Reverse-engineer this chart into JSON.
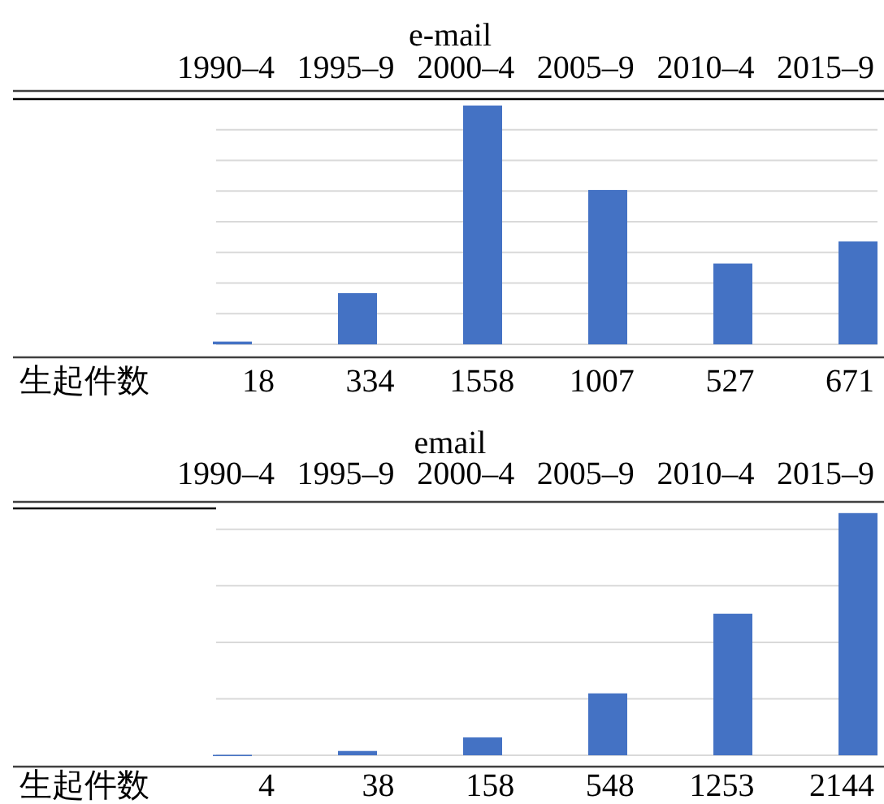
{
  "chart_data": [
    {
      "type": "bar",
      "title": "e-mail",
      "categories": [
        "1990–4",
        "1995–9",
        "2000–4",
        "2005–9",
        "2010–4",
        "2015–9"
      ],
      "values": [
        18,
        334,
        1558,
        1007,
        527,
        671
      ],
      "color": "#4472c4",
      "data_labels": true,
      "ylim": [
        0,
        1600
      ],
      "yticks": [
        {
          "value": 0,
          "label": null
        },
        {
          "value": 200,
          "label": null
        },
        {
          "value": 400,
          "label": null
        },
        {
          "value": 600,
          "label": null
        },
        {
          "value": 800,
          "label": null
        },
        {
          "value": 1000,
          "label": null
        },
        {
          "value": 1200,
          "label": null
        },
        {
          "value": 1400,
          "label": null
        }
      ],
      "grid": "y",
      "tick_labels": "x",
      "annotations": [
        "生起件数"
      ]
    },
    {
      "type": "bar",
      "title": "email",
      "categories": [
        "1990–4",
        "1995–9",
        "2000–4",
        "2005–9",
        "2010–4",
        "2015–9"
      ],
      "values": [
        4,
        38,
        158,
        548,
        1253,
        2144
      ],
      "color": "#4472c4",
      "data_labels": true,
      "ylim": [
        0,
        2200
      ],
      "yticks": [
        {
          "value": 0,
          "label": null
        },
        {
          "value": 500,
          "label": null
        },
        {
          "value": 1000,
          "label": null
        },
        {
          "value": 1500,
          "label": null
        },
        {
          "value": 2000,
          "label": null
        }
      ],
      "grid": "y",
      "tick_labels": "x",
      "annotations": [
        "生起件数"
      ]
    }
  ]
}
